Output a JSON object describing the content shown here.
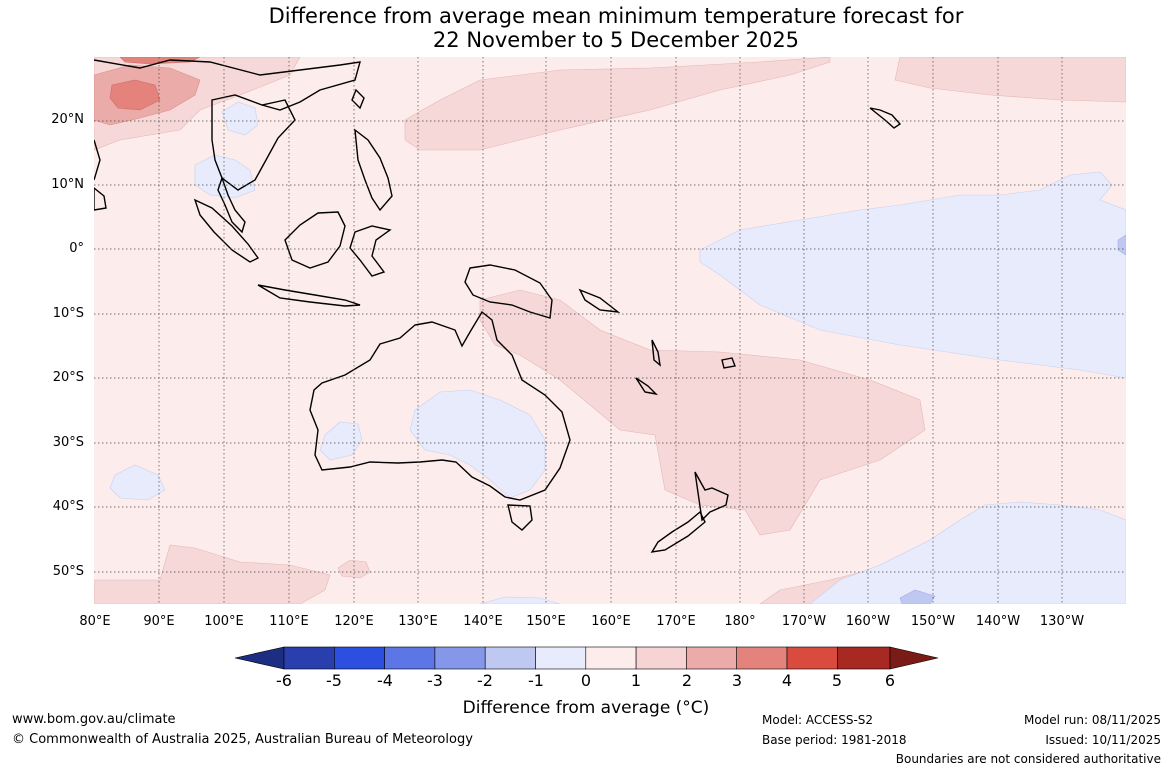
{
  "title": {
    "line1": "Difference from average mean minimum temperature forecast for",
    "line2": "22 November to 5 December 2025"
  },
  "map": {
    "lat_labels": [
      "20°N",
      "10°N",
      "0°",
      "10°S",
      "20°S",
      "30°S",
      "40°S",
      "50°S"
    ],
    "lon_labels": [
      "80°E",
      "90°E",
      "100°E",
      "110°E",
      "120°E",
      "130°E",
      "140°E",
      "150°E",
      "160°E",
      "170°E",
      "180°",
      "170°W",
      "160°W",
      "150°W",
      "140°W",
      "130°W"
    ]
  },
  "colorbar": {
    "title": "Difference from average (°C)",
    "tick_labels": [
      "-6",
      "-5",
      "-4",
      "-3",
      "-2",
      "-1",
      "0",
      "1",
      "2",
      "3",
      "4",
      "5",
      "6"
    ],
    "colors": [
      "#1d2d82",
      "#2a3fae",
      "#2c4fe0",
      "#5c76e6",
      "#8497e8",
      "#bfc8f1",
      "#e7ebfb",
      "#fcedec",
      "#f5d4d3",
      "#ebaba8",
      "#e3837c",
      "#d94a3f",
      "#a82822",
      "#7a1b17"
    ]
  },
  "footer": {
    "website": "www.bom.gov.au/climate",
    "copyright": "© Commonwealth of Australia 2025, Australian Bureau of Meteorology",
    "model": "Model: ACCESS-S2",
    "base_period": "Base period: 1981-2018",
    "model_run": "Model run: 08/11/2025",
    "issued": "Issued: 10/11/2025",
    "boundaries_note": "Boundaries are not considered authoritative"
  }
}
